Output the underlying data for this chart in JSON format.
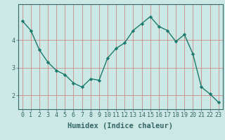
{
  "x": [
    0,
    1,
    2,
    3,
    4,
    5,
    6,
    7,
    8,
    9,
    10,
    11,
    12,
    13,
    14,
    15,
    16,
    17,
    18,
    19,
    20,
    21,
    22,
    23
  ],
  "y": [
    4.7,
    4.35,
    3.65,
    3.2,
    2.9,
    2.75,
    2.45,
    2.3,
    2.6,
    2.55,
    3.35,
    3.7,
    3.9,
    4.35,
    4.6,
    4.85,
    4.5,
    4.35,
    3.95,
    4.2,
    3.5,
    2.3,
    2.05,
    1.75
  ],
  "xlabel": "Humidex (Indice chaleur)",
  "xlim": [
    -0.5,
    23.5
  ],
  "ylim": [
    1.5,
    5.3
  ],
  "yticks": [
    2,
    3,
    4
  ],
  "xticks": [
    0,
    1,
    2,
    3,
    4,
    5,
    6,
    7,
    8,
    9,
    10,
    11,
    12,
    13,
    14,
    15,
    16,
    17,
    18,
    19,
    20,
    21,
    22,
    23
  ],
  "line_color": "#1a7a6e",
  "marker_color": "#1a7a6e",
  "bg_color": "#cce8e5",
  "vgrid_color": "#cc8888",
  "hgrid_color": "#cc8888",
  "axis_color": "#336666",
  "tick_fontsize": 6,
  "label_fontsize": 7.5
}
